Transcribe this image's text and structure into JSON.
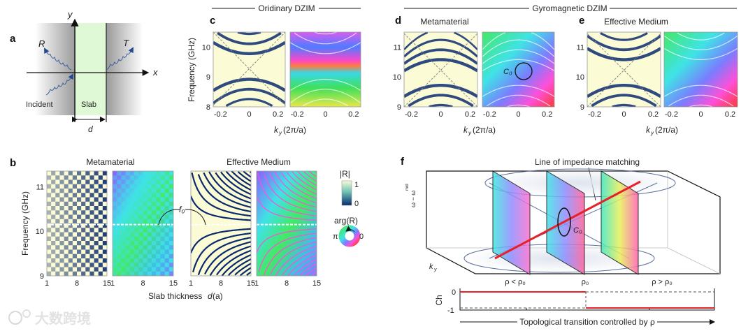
{
  "panel_labels": {
    "a": "a",
    "b": "b",
    "c": "c",
    "d": "d",
    "e": "e",
    "f": "f"
  },
  "panel_a": {
    "x_axis": "x",
    "y_axis": "y",
    "reflected": "R",
    "transmitted": "T",
    "incident": "Incident",
    "slab": "Slab",
    "thickness": "d",
    "colors": {
      "slab": "#dff9d6",
      "outside": "#c8c8c8",
      "wave": "#3a5f9e"
    }
  },
  "group_titles": {
    "ordinary": "Oridinary DZIM",
    "gyromagnetic": "Gyromagnetic DZIM"
  },
  "subtitles": {
    "d": "Metamaterial",
    "e": "Effective Medium",
    "b_meta": "Metamaterial",
    "b_eff": "Effective Medium"
  },
  "xlabel_k": {
    "k": "k",
    "sub": "y",
    "unit": "(2π/a)"
  },
  "ylabel_freq": "Frequency (GHz)",
  "annotations": {
    "c0": "C₀",
    "f0": "f₀"
  },
  "b_xlabel": {
    "text": "Slab thickness ",
    "var": "d",
    "unit": " (a)"
  },
  "legend": {
    "absR_title": "|R|",
    "absR_max": "1",
    "absR_min": "0",
    "argR_title": "arg(R)",
    "argR_left": "π",
    "argR_right": "0"
  },
  "panel_f": {
    "title": "Line of impedance matching",
    "z_axis_main": "ω − ω",
    "z_axis_sub": "mid",
    "ky": "k",
    "ky_sub": "y",
    "c0": "C₀",
    "rho_labels": [
      "ρ < ρ₀",
      "ρ₀",
      "ρ > ρ₀"
    ],
    "ch_label": "Ch",
    "ch_ticks": [
      "0",
      "-1"
    ],
    "bottom_caption": "Topological transition controlled by ρ",
    "colors": {
      "line": "#e8202a",
      "frame": "#111111",
      "ellipse": "#5a6f9e"
    }
  },
  "colors": {
    "absR_high": "#fbfbd6",
    "absR_low": "#0b2a6e",
    "absR_mid": "#3aa7b8"
  },
  "watermark": "大数跨境",
  "chart_data": [
    {
      "panel": "c-abs",
      "type": "heatmap",
      "quantity": "|R|",
      "xlim": [
        -0.25,
        0.25
      ],
      "ylim": [
        8,
        10.5
      ],
      "xticks": [
        "-0.2",
        "0",
        "0.2"
      ],
      "yticks": [
        "10",
        "9",
        "8"
      ],
      "ytick_values": [
        10,
        9,
        8
      ],
      "xtick_values": [
        -0.2,
        0,
        0.2
      ]
    },
    {
      "panel": "c-arg",
      "type": "heatmap",
      "quantity": "arg(R)",
      "xlim": [
        -0.25,
        0.25
      ],
      "ylim": [
        8,
        10.5
      ],
      "xticks": [
        "-0.2",
        "0",
        "0.2"
      ],
      "xtick_values": [
        -0.2,
        0,
        0.2
      ]
    },
    {
      "panel": "d-abs",
      "type": "heatmap",
      "quantity": "|R|",
      "xlim": [
        -0.25,
        0.25
      ],
      "ylim": [
        9,
        11.5
      ],
      "xticks": [
        "-0.2",
        "0",
        "0.2"
      ],
      "yticks": [
        "11",
        "10",
        "9"
      ],
      "ytick_values": [
        11,
        10,
        9
      ],
      "xtick_values": [
        -0.2,
        0,
        0.2
      ]
    },
    {
      "panel": "d-arg",
      "type": "heatmap",
      "quantity": "arg(R)",
      "xlim": [
        -0.25,
        0.25
      ],
      "ylim": [
        9,
        11.5
      ],
      "xticks": [
        "-0.2",
        "0",
        "0.2"
      ],
      "xtick_values": [
        -0.2,
        0,
        0.2
      ]
    },
    {
      "panel": "e-abs",
      "type": "heatmap",
      "quantity": "|R|",
      "xlim": [
        -0.25,
        0.25
      ],
      "ylim": [
        9,
        11.5
      ],
      "xticks": [
        "-0.2",
        "0",
        "0.2"
      ],
      "yticks": [
        "11",
        "10",
        "9"
      ],
      "ytick_values": [
        11,
        10,
        9
      ],
      "xtick_values": [
        -0.2,
        0,
        0.2
      ]
    },
    {
      "panel": "e-arg",
      "type": "heatmap",
      "quantity": "arg(R)",
      "xlim": [
        -0.25,
        0.25
      ],
      "ylim": [
        9,
        11.5
      ],
      "xticks": [
        "-0.2",
        "0",
        "0.2"
      ],
      "xtick_values": [
        -0.2,
        0,
        0.2
      ]
    },
    {
      "panel": "b-meta-abs",
      "type": "heatmap",
      "quantity": "|R|",
      "xlim": [
        1,
        15
      ],
      "ylim": [
        9,
        11.35
      ],
      "xticks": [
        "1",
        "8",
        "15"
      ],
      "yticks": [
        "11",
        "10",
        "9"
      ],
      "ytick_values": [
        11,
        10,
        9
      ],
      "xtick_values": [
        1,
        8,
        15
      ],
      "dashed_line_f0": 10.15
    },
    {
      "panel": "b-meta-arg",
      "type": "heatmap",
      "quantity": "arg(R)",
      "xlim": [
        1,
        15
      ],
      "ylim": [
        9,
        11.35
      ],
      "xticks": [
        "1",
        "8",
        "15"
      ],
      "xtick_values": [
        1,
        8,
        15
      ],
      "dashed_line_f0": 10.15
    },
    {
      "panel": "b-eff-abs",
      "type": "heatmap",
      "quantity": "|R|",
      "xlim": [
        1,
        15
      ],
      "ylim": [
        9,
        11.35
      ],
      "xticks": [
        "1",
        "8",
        "15"
      ],
      "xtick_values": [
        1,
        8,
        15
      ],
      "dashed_line_f0": 10.15
    },
    {
      "panel": "b-eff-arg",
      "type": "heatmap",
      "quantity": "arg(R)",
      "xlim": [
        1,
        15
      ],
      "ylim": [
        9,
        11.35
      ],
      "xticks": [
        "1",
        "8",
        "15"
      ],
      "xtick_values": [
        1,
        8,
        15
      ],
      "dashed_line_f0": 10.15
    },
    {
      "panel": "f-ch",
      "type": "line",
      "ylabel": "Ch",
      "yticks": [
        "0",
        "-1"
      ],
      "series": [
        {
          "segments": [
            {
              "from": "start",
              "to": "ρ₀",
              "value": 0
            },
            {
              "from": "ρ₀",
              "to": "end",
              "value": -1
            }
          ]
        }
      ]
    }
  ]
}
